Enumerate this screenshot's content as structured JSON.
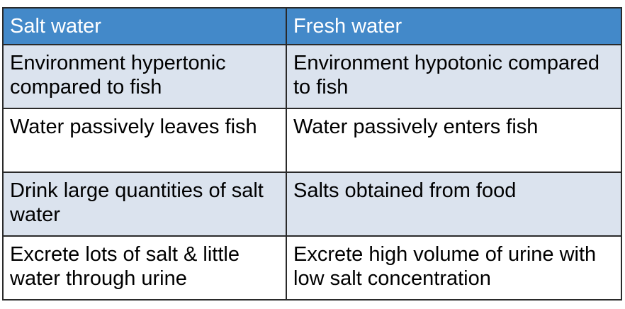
{
  "table": {
    "header": [
      "Salt water",
      "Fresh water"
    ],
    "rows": [
      [
        "Environment hypertonic compared to fish",
        "Environment hypotonic compared to fish"
      ],
      [
        "Water passively leaves fish",
        "Water passively enters fish"
      ],
      [
        "Drink large quantities of salt water",
        "Salts obtained from food"
      ],
      [
        "Excrete lots of salt & little water through urine",
        "Excrete high volume of urine with low salt concentration"
      ]
    ]
  }
}
